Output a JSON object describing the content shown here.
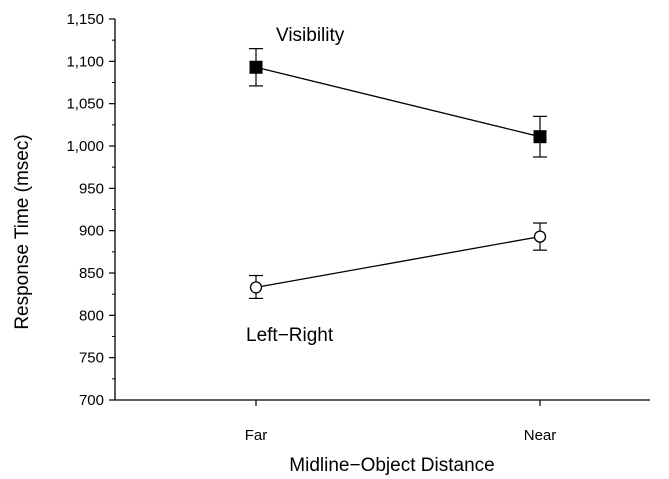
{
  "chart_data": {
    "type": "line",
    "title": "",
    "xlabel": "Midline−Object Distance",
    "ylabel": "Response Time (msec)",
    "categories": [
      "Far",
      "Near"
    ],
    "ylim": [
      700,
      1150
    ],
    "yticks": [
      700,
      750,
      800,
      850,
      900,
      950,
      1000,
      1050,
      1100,
      1150
    ],
    "ytick_labels": [
      "700",
      "750",
      "800",
      "850",
      "900",
      "950",
      "1,000",
      "1,050",
      "1,100",
      "1,150"
    ],
    "grid": false,
    "legend": "none (series labelled directly on the plot)",
    "series": [
      {
        "name": "Visibility",
        "marker": "filled-square",
        "values": [
          1093,
          1011
        ],
        "error_low": [
          1071,
          987
        ],
        "error_high": [
          1115,
          1035
        ]
      },
      {
        "name": "Left−Right",
        "marker": "open-circle",
        "values": [
          833,
          893
        ],
        "error_low": [
          820,
          877
        ],
        "error_high": [
          847,
          909
        ]
      }
    ]
  },
  "colors": {
    "ink": "#000000",
    "background": "#ffffff"
  }
}
